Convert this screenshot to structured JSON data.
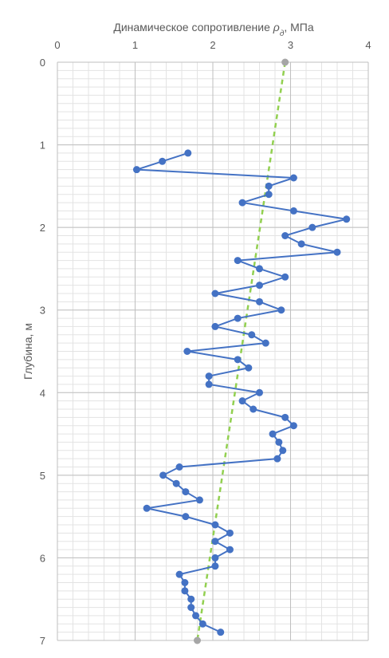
{
  "chart_data": {
    "type": "line",
    "title": "Динамическое сопротивление ρд, МПа",
    "xlabel": "Динамическое сопротивление ρд, МПа",
    "ylabel": "Глубина, м",
    "x_axis_position": "top",
    "y_axis_inverted": true,
    "xlim": [
      0,
      4
    ],
    "ylim": [
      0,
      7
    ],
    "x_ticks": [
      "0",
      "1",
      "2",
      "3",
      "4"
    ],
    "y_ticks": [
      "0",
      "1",
      "2",
      "3",
      "4",
      "5",
      "6",
      "7"
    ],
    "x_minor_step": 0.2,
    "y_minor_step": 0.1,
    "grid": true,
    "legend": "none",
    "series": [
      {
        "style": "solid line with circle markers",
        "color": "#4472c4",
        "points": [
          [
            1.68,
            1.1
          ],
          [
            1.35,
            1.2
          ],
          [
            1.02,
            1.3
          ],
          [
            3.04,
            1.4
          ],
          [
            2.72,
            1.5
          ],
          [
            2.72,
            1.6
          ],
          [
            2.38,
            1.7
          ],
          [
            3.04,
            1.8
          ],
          [
            3.72,
            1.9
          ],
          [
            3.28,
            2.0
          ],
          [
            2.93,
            2.1
          ],
          [
            3.14,
            2.2
          ],
          [
            3.6,
            2.3
          ],
          [
            2.32,
            2.4
          ],
          [
            2.6,
            2.5
          ],
          [
            2.93,
            2.6
          ],
          [
            2.6,
            2.7
          ],
          [
            2.03,
            2.8
          ],
          [
            2.6,
            2.9
          ],
          [
            2.88,
            3.0
          ],
          [
            2.32,
            3.1
          ],
          [
            2.03,
            3.2
          ],
          [
            2.5,
            3.3
          ],
          [
            2.68,
            3.4
          ],
          [
            1.67,
            3.5
          ],
          [
            2.32,
            3.6
          ],
          [
            2.46,
            3.7
          ],
          [
            1.95,
            3.8
          ],
          [
            1.95,
            3.9
          ],
          [
            2.6,
            4.0
          ],
          [
            2.38,
            4.1
          ],
          [
            2.52,
            4.2
          ],
          [
            2.93,
            4.3
          ],
          [
            3.04,
            4.4
          ],
          [
            2.77,
            4.5
          ],
          [
            2.85,
            4.6
          ],
          [
            2.9,
            4.7
          ],
          [
            2.83,
            4.8
          ],
          [
            1.57,
            4.9
          ],
          [
            1.36,
            5.0
          ],
          [
            1.53,
            5.1
          ],
          [
            1.65,
            5.2
          ],
          [
            1.83,
            5.3
          ],
          [
            1.15,
            5.4
          ],
          [
            1.65,
            5.5
          ],
          [
            2.03,
            5.6
          ],
          [
            2.22,
            5.7
          ],
          [
            2.03,
            5.8
          ],
          [
            2.22,
            5.9
          ],
          [
            2.03,
            6.0
          ],
          [
            2.03,
            6.1
          ],
          [
            1.57,
            6.2
          ],
          [
            1.64,
            6.3
          ],
          [
            1.64,
            6.4
          ],
          [
            1.72,
            6.5
          ],
          [
            1.72,
            6.6
          ],
          [
            1.78,
            6.7
          ],
          [
            1.87,
            6.8
          ],
          [
            2.1,
            6.9
          ]
        ]
      },
      {
        "style": "dashed trend line",
        "color": "#92d050",
        "points": [
          [
            2.93,
            0.0
          ],
          [
            1.8,
            7.0
          ]
        ],
        "end_marker_color": "#a6a6a6"
      }
    ]
  }
}
